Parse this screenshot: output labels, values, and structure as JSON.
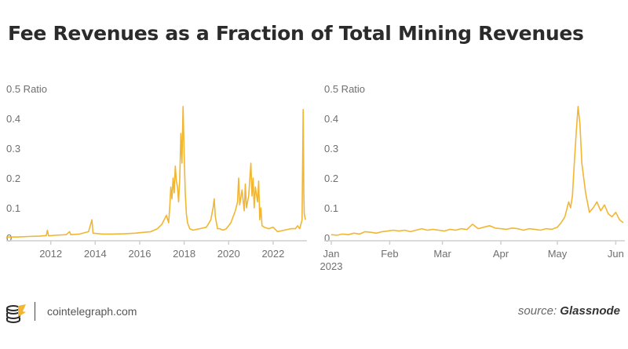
{
  "title": "Fee Revenues as a Fraction of Total Mining Revenues",
  "colors": {
    "line": "#f2b632",
    "axis": "#cfcfcf",
    "text": "#6f6f6f"
  },
  "footer": {
    "site": "cointelegraph.com",
    "source_prefix": "source:",
    "source_name": "Glassnode",
    "logo_icon": "cointelegraph-logo-icon"
  },
  "chart_data": [
    {
      "type": "line",
      "yunit": "Ratio",
      "ylim": [
        0,
        0.5
      ],
      "yticks": [
        0,
        0.1,
        0.2,
        0.3,
        0.4,
        0.5
      ],
      "ytick_labels": [
        "0",
        "0.1",
        "0.2",
        "0.3",
        "0.4",
        "0.5 Ratio"
      ],
      "xlim": [
        2010.0,
        2023.45
      ],
      "xticks": [
        2012,
        2014,
        2016,
        2018,
        2020,
        2022
      ],
      "xtick_labels": [
        "2012",
        "2014",
        "2016",
        "2018",
        "2020",
        "2022"
      ],
      "x": [
        2010.0,
        2010.5,
        2011.0,
        2011.5,
        2011.8,
        2011.85,
        2011.9,
        2012.2,
        2012.7,
        2012.85,
        2012.9,
        2013.3,
        2013.7,
        2013.85,
        2013.9,
        2014.3,
        2014.8,
        2015.3,
        2015.8,
        2016.2,
        2016.5,
        2016.8,
        2017.0,
        2017.1,
        2017.2,
        2017.3,
        2017.35,
        2017.4,
        2017.45,
        2017.5,
        2017.55,
        2017.6,
        2017.65,
        2017.7,
        2017.75,
        2017.8,
        2017.85,
        2017.9,
        2017.95,
        2018.0,
        2018.05,
        2018.1,
        2018.15,
        2018.2,
        2018.25,
        2018.4,
        2018.7,
        2019.0,
        2019.2,
        2019.3,
        2019.35,
        2019.4,
        2019.45,
        2019.5,
        2019.6,
        2019.75,
        2019.9,
        2020.1,
        2020.3,
        2020.4,
        2020.45,
        2020.5,
        2020.6,
        2020.7,
        2020.75,
        2020.8,
        2020.9,
        2021.0,
        2021.05,
        2021.1,
        2021.15,
        2021.2,
        2021.3,
        2021.35,
        2021.4,
        2021.45,
        2021.5,
        2021.6,
        2021.8,
        2022.0,
        2022.2,
        2022.5,
        2022.8,
        2023.0,
        2023.1,
        2023.2,
        2023.3,
        2023.35,
        2023.38,
        2023.4,
        2023.45
      ],
      "y": [
        0.002,
        0.002,
        0.004,
        0.005,
        0.007,
        0.025,
        0.006,
        0.008,
        0.01,
        0.02,
        0.01,
        0.012,
        0.02,
        0.06,
        0.015,
        0.012,
        0.012,
        0.013,
        0.015,
        0.018,
        0.02,
        0.03,
        0.045,
        0.06,
        0.075,
        0.05,
        0.1,
        0.17,
        0.13,
        0.2,
        0.15,
        0.24,
        0.19,
        0.17,
        0.12,
        0.2,
        0.35,
        0.25,
        0.44,
        0.28,
        0.15,
        0.08,
        0.05,
        0.04,
        0.03,
        0.025,
        0.03,
        0.035,
        0.06,
        0.1,
        0.13,
        0.07,
        0.05,
        0.03,
        0.03,
        0.025,
        0.03,
        0.05,
        0.09,
        0.12,
        0.2,
        0.11,
        0.16,
        0.09,
        0.18,
        0.1,
        0.14,
        0.25,
        0.14,
        0.2,
        0.1,
        0.17,
        0.12,
        0.19,
        0.06,
        0.1,
        0.04,
        0.035,
        0.03,
        0.035,
        0.02,
        0.025,
        0.03,
        0.03,
        0.04,
        0.03,
        0.06,
        0.43,
        0.15,
        0.08,
        0.06
      ]
    },
    {
      "type": "line",
      "yunit": "Ratio",
      "ylim": [
        0,
        0.5
      ],
      "yticks": [
        0,
        0.1,
        0.2,
        0.3,
        0.4,
        0.5
      ],
      "ytick_labels": [
        "0",
        "0.1",
        "0.2",
        "0.3",
        "0.4",
        "0.5 Ratio"
      ],
      "xlim": [
        "2023-01-01",
        "2023-06-05"
      ],
      "xticks": [
        "2023-01-01",
        "2023-02-01",
        "2023-03-01",
        "2023-04-01",
        "2023-05-01",
        "2023-06-01"
      ],
      "xtick_labels": [
        "Jan",
        "Feb",
        "Mar",
        "Apr",
        "May",
        "Jun"
      ],
      "x_sublabel": "2023",
      "x": [
        "2023-01-01",
        "2023-01-04",
        "2023-01-07",
        "2023-01-10",
        "2023-01-13",
        "2023-01-16",
        "2023-01-19",
        "2023-01-22",
        "2023-01-25",
        "2023-01-28",
        "2023-01-31",
        "2023-02-03",
        "2023-02-06",
        "2023-02-09",
        "2023-02-12",
        "2023-02-15",
        "2023-02-18",
        "2023-02-21",
        "2023-02-24",
        "2023-02-27",
        "2023-03-02",
        "2023-03-05",
        "2023-03-08",
        "2023-03-11",
        "2023-03-14",
        "2023-03-17",
        "2023-03-20",
        "2023-03-23",
        "2023-03-26",
        "2023-03-29",
        "2023-04-01",
        "2023-04-04",
        "2023-04-07",
        "2023-04-10",
        "2023-04-13",
        "2023-04-16",
        "2023-04-19",
        "2023-04-22",
        "2023-04-25",
        "2023-04-28",
        "2023-05-01",
        "2023-05-03",
        "2023-05-05",
        "2023-05-07",
        "2023-05-08",
        "2023-05-09",
        "2023-05-10",
        "2023-05-11",
        "2023-05-12",
        "2023-05-13",
        "2023-05-14",
        "2023-05-15",
        "2023-05-16",
        "2023-05-18",
        "2023-05-20",
        "2023-05-22",
        "2023-05-24",
        "2023-05-26",
        "2023-05-28",
        "2023-05-30",
        "2023-06-01",
        "2023-06-03",
        "2023-06-05"
      ],
      "y": [
        0.01,
        0.008,
        0.012,
        0.01,
        0.015,
        0.012,
        0.02,
        0.018,
        0.015,
        0.02,
        0.022,
        0.025,
        0.022,
        0.025,
        0.02,
        0.025,
        0.03,
        0.025,
        0.028,
        0.025,
        0.022,
        0.028,
        0.025,
        0.03,
        0.027,
        0.045,
        0.03,
        0.035,
        0.04,
        0.032,
        0.03,
        0.028,
        0.032,
        0.03,
        0.025,
        0.03,
        0.028,
        0.025,
        0.03,
        0.028,
        0.035,
        0.05,
        0.07,
        0.12,
        0.1,
        0.14,
        0.25,
        0.35,
        0.44,
        0.38,
        0.25,
        0.2,
        0.15,
        0.085,
        0.1,
        0.12,
        0.09,
        0.11,
        0.08,
        0.07,
        0.085,
        0.06,
        0.05
      ]
    }
  ]
}
